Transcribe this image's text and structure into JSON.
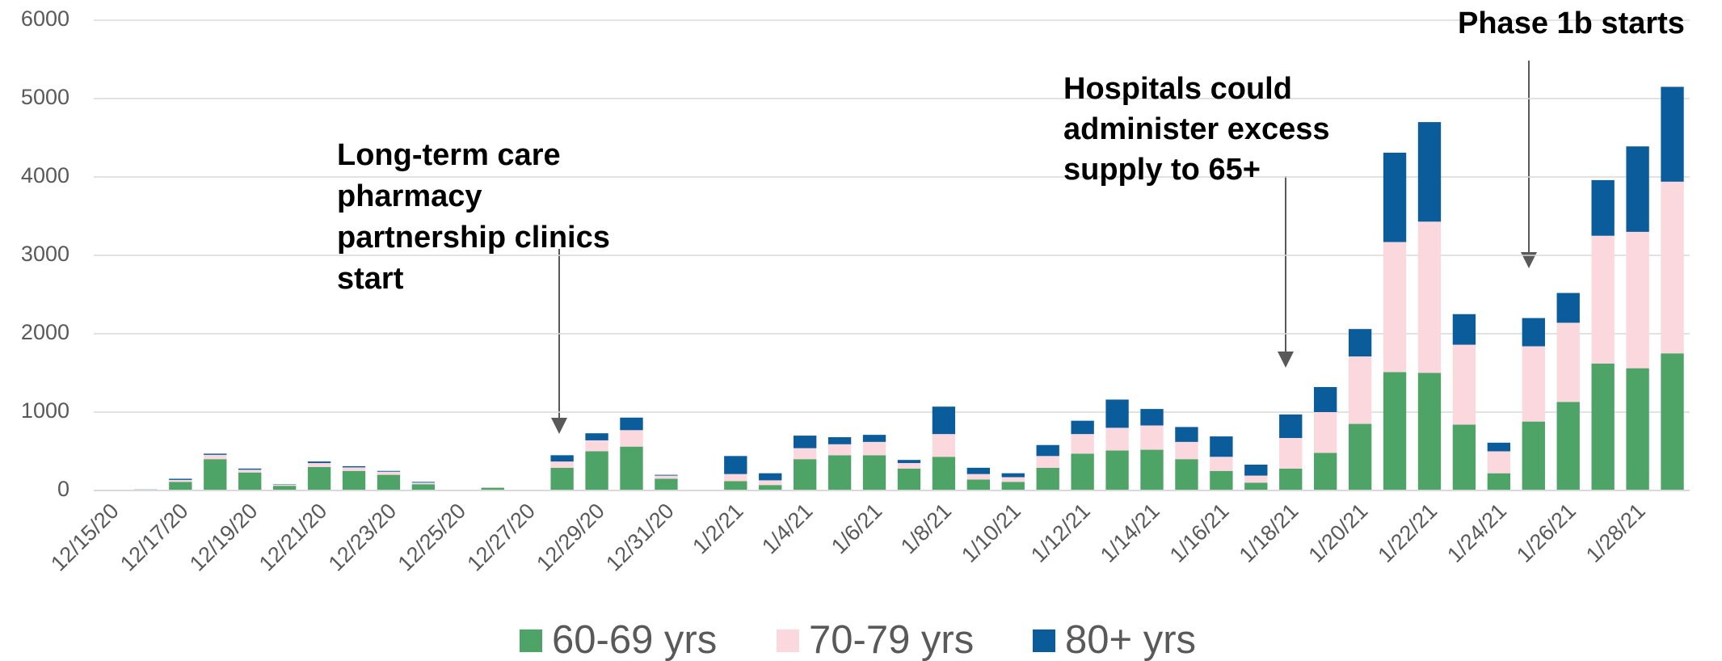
{
  "chart_data": {
    "type": "stacked_bar",
    "categories": [
      "12/15/20",
      null,
      "12/17/20",
      null,
      "12/19/20",
      null,
      "12/21/20",
      null,
      "12/23/20",
      null,
      "12/25/20",
      null,
      "12/27/20",
      null,
      "12/29/20",
      null,
      "12/31/20",
      null,
      "1/2/21",
      null,
      "1/4/21",
      null,
      "1/6/21",
      null,
      "1/8/21",
      null,
      "1/10/21",
      null,
      "1/12/21",
      null,
      "1/14/21",
      null,
      "1/16/21",
      null,
      "1/18/21",
      null,
      "1/20/21",
      null,
      "1/22/21",
      null,
      "1/24/21",
      null,
      "1/26/21",
      null,
      "1/28/21",
      null
    ],
    "series": [
      {
        "name": "60-69 yrs",
        "color": "#4ea466",
        "values": [
          0,
          10,
          110,
          400,
          230,
          60,
          300,
          250,
          200,
          80,
          0,
          35,
          0,
          290,
          500,
          560,
          150,
          0,
          120,
          70,
          400,
          450,
          450,
          280,
          430,
          140,
          110,
          290,
          470,
          510,
          520,
          400,
          250,
          100,
          280,
          480,
          850,
          1510,
          1500,
          840,
          220,
          880,
          1130,
          1620,
          1560,
          1750
        ]
      },
      {
        "name": "70-79 yrs",
        "color": "#fbd7de",
        "values": [
          0,
          3,
          25,
          55,
          35,
          15,
          50,
          45,
          40,
          20,
          0,
          5,
          0,
          80,
          140,
          210,
          40,
          0,
          90,
          60,
          140,
          140,
          170,
          70,
          290,
          70,
          60,
          150,
          250,
          290,
          310,
          220,
          180,
          90,
          390,
          520,
          860,
          1660,
          1930,
          1020,
          280,
          960,
          1010,
          1630,
          1740,
          2190
        ]
      },
      {
        "name": "80+ yrs",
        "color": "#0a5c9a",
        "values": [
          0,
          2,
          15,
          15,
          15,
          5,
          20,
          15,
          10,
          10,
          0,
          0,
          0,
          80,
          90,
          160,
          10,
          0,
          230,
          90,
          160,
          90,
          90,
          40,
          350,
          80,
          50,
          140,
          170,
          360,
          210,
          190,
          260,
          140,
          300,
          320,
          350,
          1140,
          1270,
          390,
          110,
          360,
          380,
          710,
          1090,
          1210
        ]
      }
    ],
    "ylim": [
      0,
      6000
    ],
    "yticks": [
      0,
      1000,
      2000,
      3000,
      4000,
      5000,
      6000
    ],
    "grid": true,
    "legend": "bottom",
    "annotations": [
      {
        "lines": [
          "Long-term care",
          "pharmacy",
          "partnership clinics",
          "start"
        ]
      },
      {
        "lines": [
          "Hospitals could",
          "administer excess",
          "supply to 65+"
        ]
      },
      {
        "lines": [
          "Phase 1b starts"
        ]
      }
    ]
  }
}
